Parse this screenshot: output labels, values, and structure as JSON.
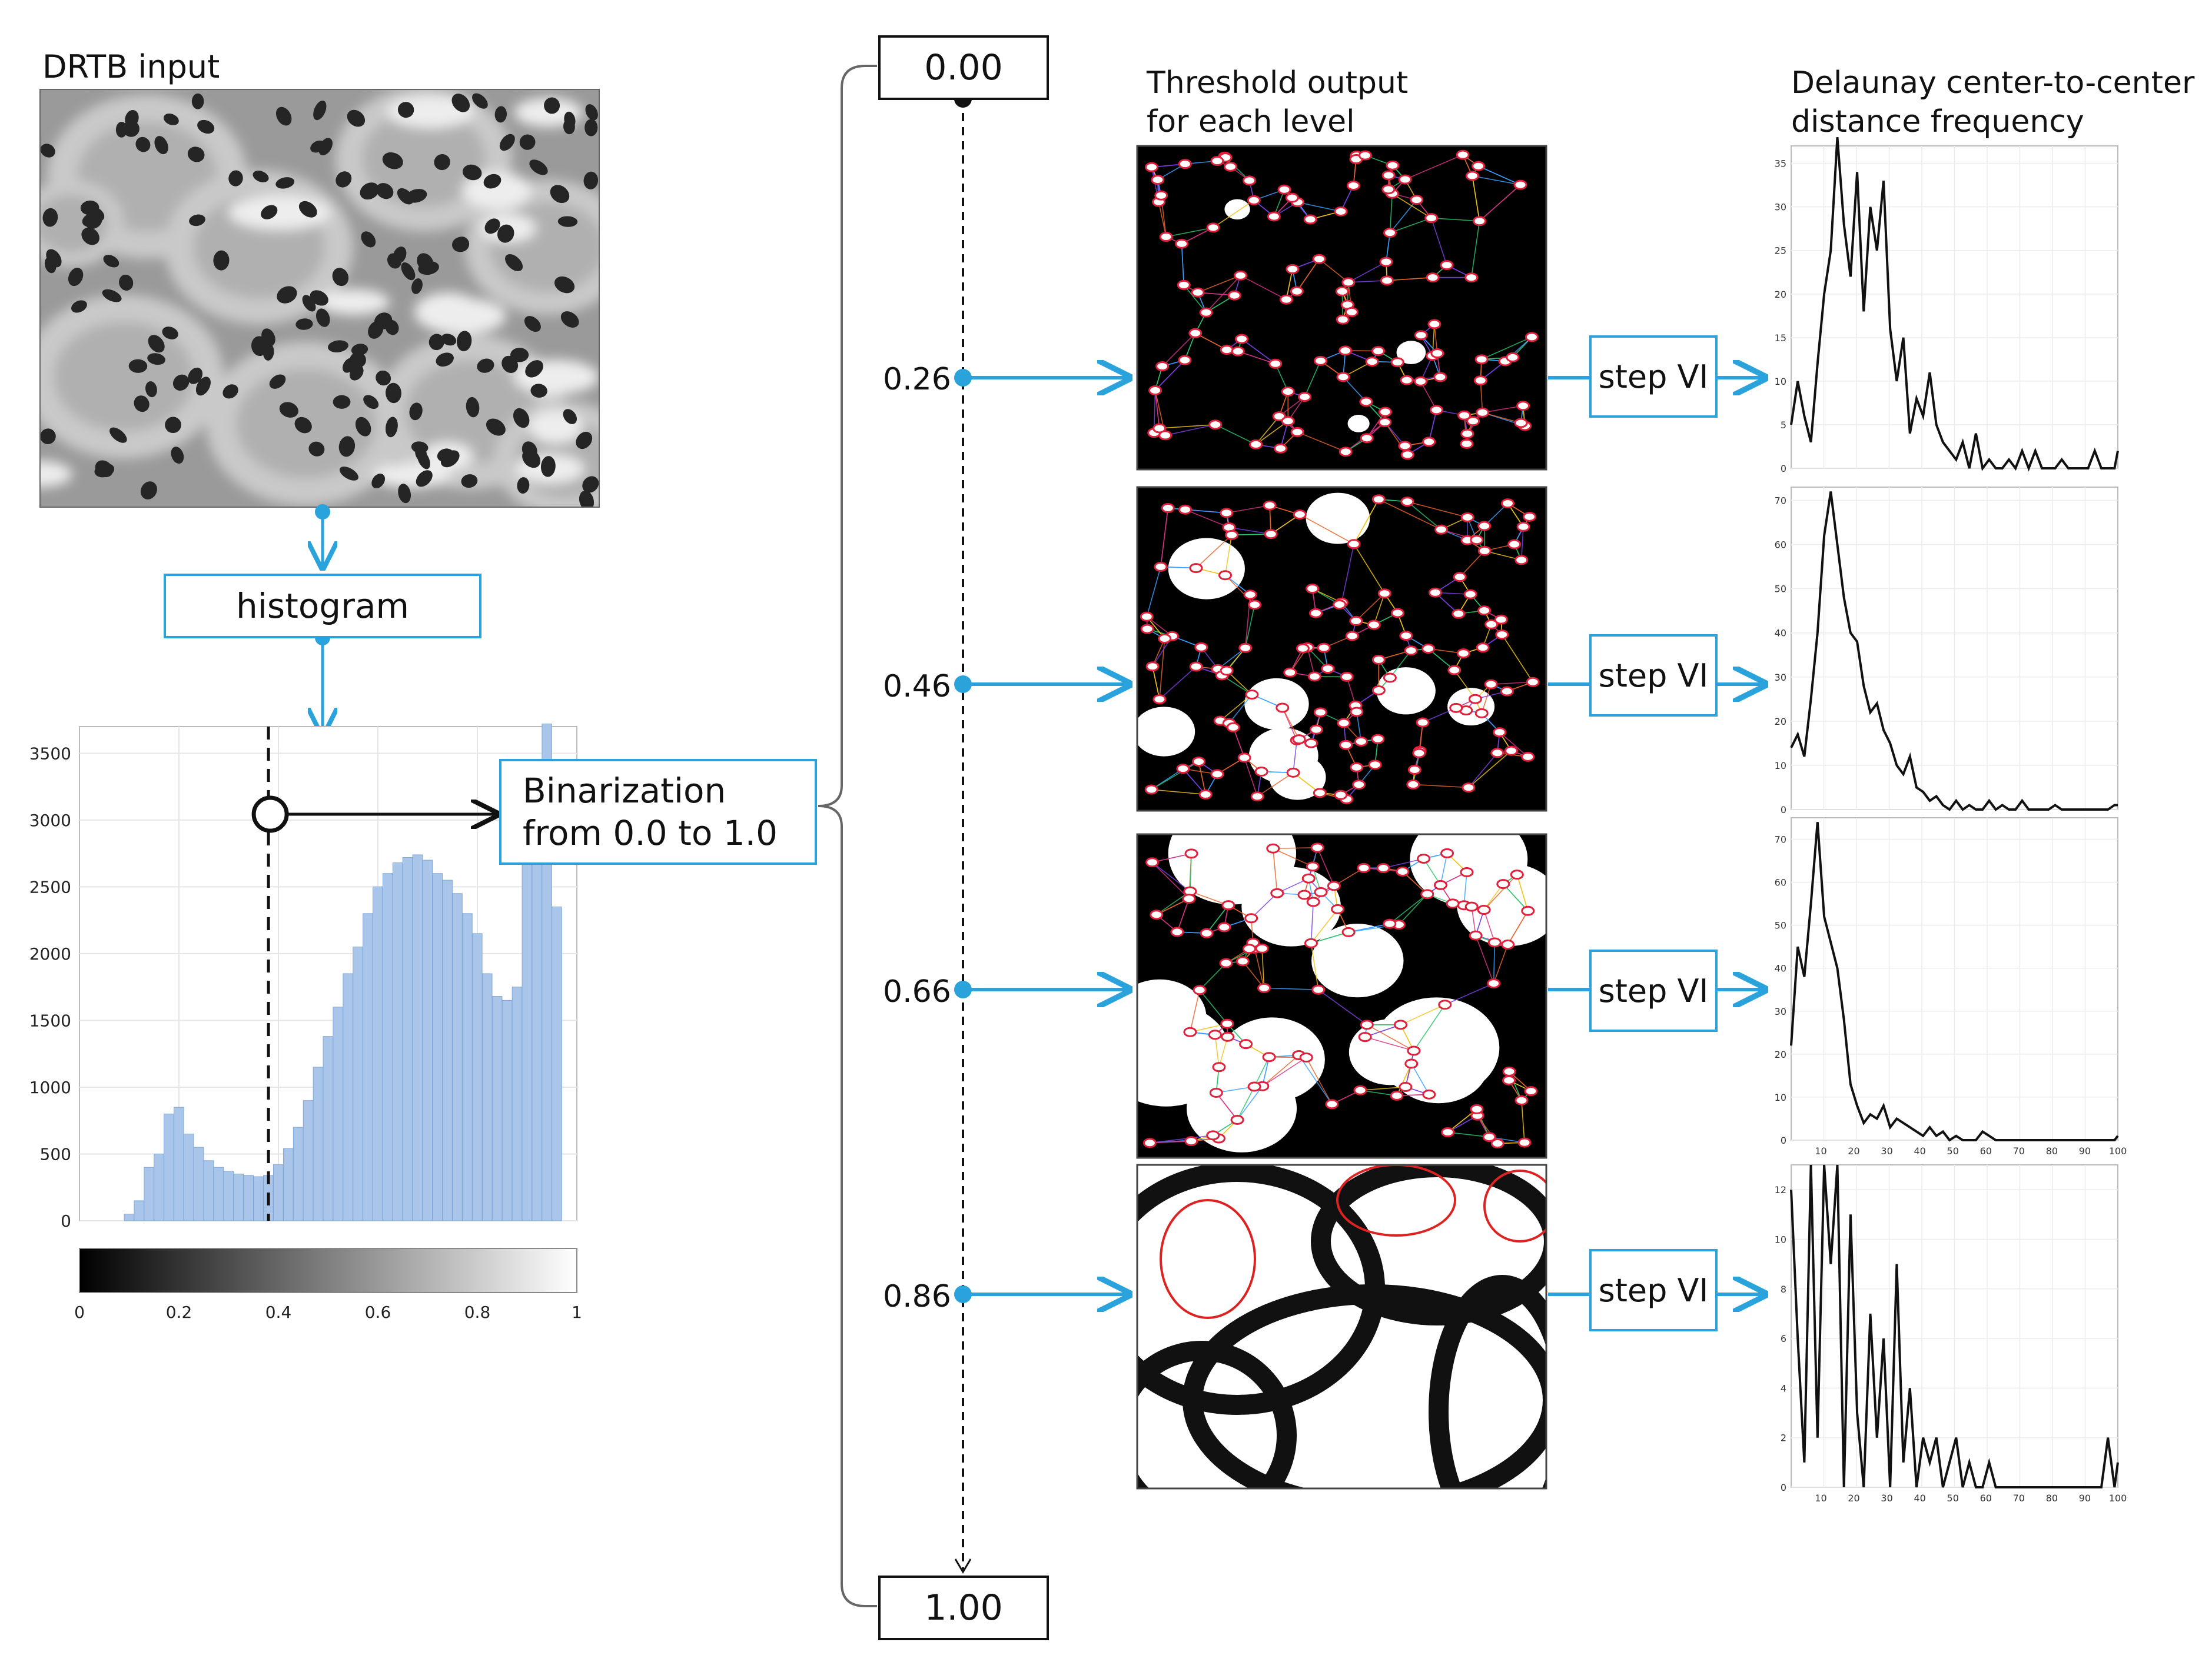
{
  "input": {
    "title": "DRTB input"
  },
  "histogram_box": {
    "label": "histogram"
  },
  "binarization": {
    "line1": "Binarization",
    "line2": "from 0.0 to 1.0"
  },
  "scale": {
    "start": "0.00",
    "end": "1.00",
    "levels": [
      "0.26",
      "0.46",
      "0.66",
      "0.86"
    ]
  },
  "threshold_header": {
    "line1": "Threshold output",
    "line2": "for each level"
  },
  "delaunay_header": {
    "line1": "Delaunay center-to-center",
    "line2": "distance frequency"
  },
  "step_label": "step VI",
  "colors": {
    "accent": "#2aa3dd",
    "histogram_fill": "#a9c6ea",
    "histogram_stroke": "#7fa7d8"
  },
  "chart_data": [
    {
      "type": "bar",
      "xlim": [
        0,
        1
      ],
      "ylim": [
        0,
        3700
      ],
      "yticks": [
        "0",
        "500",
        "1000",
        "1500",
        "2000",
        "2500",
        "3000",
        "3500"
      ],
      "colorbar_ticks": [
        "0",
        "0.2",
        "0.4",
        "0.6",
        "0.8",
        "1"
      ],
      "threshold_marker": 0.38,
      "x": [
        0.08,
        0.1,
        0.12,
        0.14,
        0.16,
        0.18,
        0.2,
        0.22,
        0.24,
        0.26,
        0.28,
        0.3,
        0.32,
        0.34,
        0.36,
        0.38,
        0.4,
        0.42,
        0.44,
        0.46,
        0.48,
        0.5,
        0.52,
        0.54,
        0.56,
        0.58,
        0.6,
        0.62,
        0.64,
        0.66,
        0.68,
        0.7,
        0.72,
        0.74,
        0.76,
        0.78,
        0.8,
        0.82,
        0.84,
        0.86,
        0.88,
        0.9,
        0.92,
        0.94,
        0.96,
        0.98
      ],
      "values": [
        0,
        50,
        150,
        400,
        500,
        800,
        850,
        650,
        550,
        450,
        400,
        370,
        350,
        340,
        330,
        340,
        420,
        540,
        700,
        900,
        1150,
        1380,
        1600,
        1850,
        2050,
        2300,
        2500,
        2600,
        2680,
        2720,
        2740,
        2700,
        2600,
        2550,
        2450,
        2300,
        2150,
        1850,
        1680,
        1650,
        1750,
        2700,
        3050,
        3720,
        2350,
        0
      ]
    },
    {
      "type": "line",
      "ylim": [
        0,
        37
      ],
      "yticks": [
        "0",
        "5",
        "10",
        "15",
        "20",
        "25",
        "30",
        "35"
      ],
      "xlim": [
        1,
        100
      ],
      "x": [
        1,
        3,
        5,
        7,
        9,
        11,
        13,
        15,
        17,
        19,
        21,
        23,
        25,
        27,
        29,
        31,
        33,
        35,
        37,
        39,
        41,
        43,
        45,
        47,
        49,
        51,
        53,
        55,
        57,
        59,
        61,
        63,
        65,
        67,
        69,
        71,
        73,
        75,
        77,
        79,
        81,
        83,
        85,
        87,
        89,
        91,
        93,
        95,
        97,
        99,
        100
      ],
      "values": [
        5,
        10,
        6,
        3,
        12,
        20,
        25,
        38,
        28,
        22,
        34,
        18,
        30,
        25,
        33,
        16,
        10,
        15,
        4,
        8,
        6,
        11,
        5,
        3,
        2,
        1,
        3,
        0,
        4,
        0,
        1,
        0,
        0,
        1,
        0,
        2,
        0,
        2,
        0,
        0,
        0,
        1,
        0,
        0,
        0,
        0,
        2,
        0,
        0,
        0,
        2
      ]
    },
    {
      "type": "line",
      "ylim": [
        0,
        73
      ],
      "yticks": [
        "0",
        "10",
        "20",
        "30",
        "40",
        "50",
        "60",
        "70"
      ],
      "xlim": [
        1,
        100
      ],
      "x": [
        1,
        3,
        5,
        7,
        9,
        11,
        13,
        15,
        17,
        19,
        21,
        23,
        25,
        27,
        29,
        31,
        33,
        35,
        37,
        39,
        41,
        43,
        45,
        47,
        49,
        51,
        53,
        55,
        57,
        59,
        61,
        63,
        65,
        67,
        69,
        71,
        73,
        75,
        77,
        79,
        81,
        83,
        85,
        87,
        89,
        91,
        93,
        95,
        97,
        99,
        100
      ],
      "values": [
        14,
        17,
        12,
        25,
        40,
        62,
        72,
        60,
        48,
        40,
        38,
        28,
        22,
        24,
        18,
        15,
        10,
        8,
        12,
        5,
        4,
        2,
        3,
        1,
        0,
        2,
        0,
        1,
        0,
        0,
        2,
        0,
        1,
        0,
        0,
        2,
        0,
        0,
        0,
        0,
        1,
        0,
        0,
        0,
        0,
        0,
        0,
        0,
        0,
        1,
        1
      ]
    },
    {
      "type": "line",
      "ylim": [
        0,
        75
      ],
      "yticks": [
        "0",
        "10",
        "20",
        "30",
        "40",
        "50",
        "60",
        "70"
      ],
      "xlim": [
        1,
        100
      ],
      "xticks": [
        "10",
        "20",
        "30",
        "40",
        "50",
        "60",
        "70",
        "80",
        "90",
        "100"
      ],
      "x": [
        1,
        3,
        5,
        7,
        9,
        11,
        13,
        15,
        17,
        19,
        21,
        23,
        25,
        27,
        29,
        31,
        33,
        35,
        37,
        39,
        41,
        43,
        45,
        47,
        49,
        51,
        53,
        55,
        57,
        59,
        61,
        63,
        65,
        67,
        69,
        71,
        73,
        75,
        77,
        79,
        81,
        83,
        85,
        87,
        89,
        91,
        93,
        95,
        97,
        99,
        100
      ],
      "values": [
        22,
        45,
        38,
        55,
        74,
        52,
        46,
        40,
        28,
        13,
        8,
        4,
        6,
        5,
        8,
        3,
        5,
        4,
        3,
        2,
        1,
        3,
        1,
        2,
        0,
        1,
        0,
        0,
        0,
        2,
        1,
        0,
        0,
        0,
        0,
        0,
        0,
        0,
        0,
        0,
        0,
        0,
        0,
        0,
        0,
        0,
        0,
        0,
        0,
        0,
        1
      ]
    },
    {
      "type": "line",
      "ylim": [
        0,
        13
      ],
      "yticks": [
        "0",
        "2",
        "4",
        "6",
        "8",
        "10",
        "12"
      ],
      "xlim": [
        1,
        100
      ],
      "xticks": [
        "10",
        "20",
        "30",
        "40",
        "50",
        "60",
        "70",
        "80",
        "90",
        "100"
      ],
      "x": [
        1,
        3,
        5,
        7,
        9,
        11,
        13,
        15,
        17,
        19,
        21,
        23,
        25,
        27,
        29,
        31,
        33,
        35,
        37,
        39,
        41,
        43,
        45,
        47,
        49,
        51,
        53,
        55,
        57,
        59,
        61,
        63,
        65,
        67,
        69,
        71,
        73,
        75,
        77,
        79,
        81,
        83,
        85,
        87,
        89,
        91,
        93,
        95,
        97,
        99,
        100
      ],
      "values": [
        12,
        6,
        1,
        13,
        2,
        13,
        9,
        13,
        0,
        11,
        3,
        0,
        7,
        2,
        6,
        0,
        9,
        1,
        4,
        0,
        2,
        1,
        2,
        0,
        1,
        2,
        0,
        1,
        0,
        0,
        1,
        0,
        0,
        0,
        0,
        0,
        0,
        0,
        0,
        0,
        0,
        0,
        0,
        0,
        0,
        0,
        0,
        0,
        2,
        0,
        1
      ]
    }
  ]
}
